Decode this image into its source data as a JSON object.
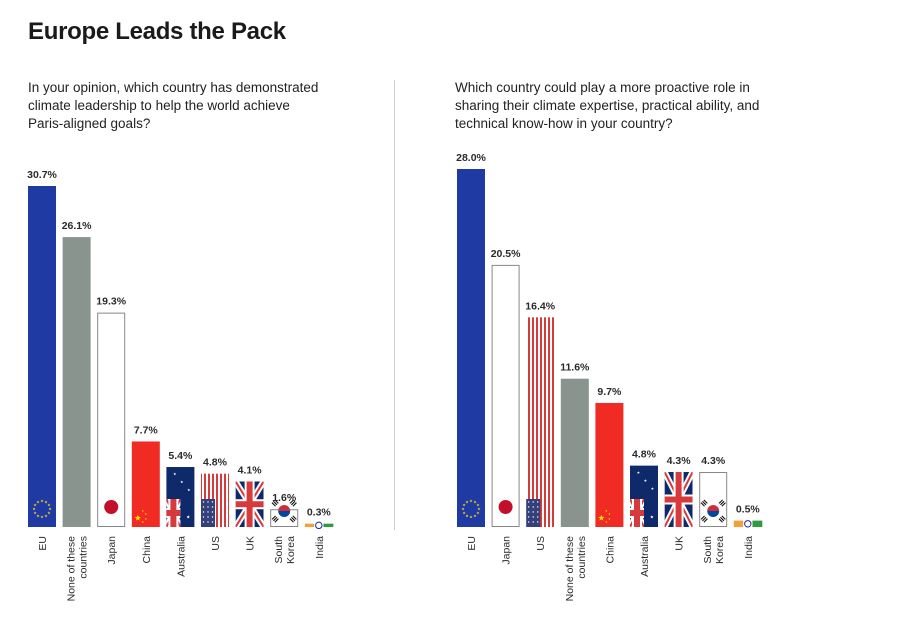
{
  "title": "Europe Leads the Pack",
  "colors": {
    "eu_blue": "#1f3aa3",
    "grey": "#8a948e",
    "red": "#ef2b24",
    "navy": "#0e2a6b",
    "us_red": "#d63a3a",
    "india_saffron": "#f6a03b",
    "india_green": "#2f9a3e"
  },
  "chart_data": [
    {
      "type": "bar",
      "title": "In your opinion, which country has demonstrated climate leadership to help the world achieve Paris-aligned goals?",
      "categories": [
        "EU",
        "None of these countries",
        "Japan",
        "China",
        "Australia",
        "US",
        "UK",
        "South Korea",
        "India"
      ],
      "values": [
        30.7,
        26.1,
        19.3,
        7.7,
        5.4,
        4.8,
        4.1,
        1.6,
        0.3
      ],
      "value_labels": [
        "30.7%",
        "26.1%",
        "19.3%",
        "7.7%",
        "5.4%",
        "4.8%",
        "4.1%",
        "1.6%",
        "0.3%"
      ],
      "fills": [
        "eu-flag",
        "grey",
        "japan-flag",
        "china-flag",
        "australia-flag",
        "us-flag",
        "uk-flag",
        "south-korea-flag",
        "india-flag"
      ],
      "grid": false
    },
    {
      "type": "bar",
      "title": "Which country could play a more proactive role in sharing their climate expertise, practical ability, and technical know-how in your country?",
      "categories": [
        "EU",
        "Japan",
        "US",
        "None of these countries",
        "China",
        "Australia",
        "UK",
        "South Korea",
        "India"
      ],
      "values": [
        28.0,
        20.5,
        16.4,
        11.6,
        9.7,
        4.8,
        4.3,
        4.3,
        0.5
      ],
      "value_labels": [
        "28.0%",
        "20.5%",
        "16.4%",
        "11.6%",
        "9.7%",
        "4.8%",
        "4.3%",
        "4.3%",
        "0.5%"
      ],
      "fills": [
        "eu-flag",
        "japan-flag",
        "us-flag",
        "grey",
        "china-flag",
        "australia-flag",
        "uk-flag",
        "south-korea-flag",
        "india-flag"
      ],
      "grid": false
    }
  ]
}
